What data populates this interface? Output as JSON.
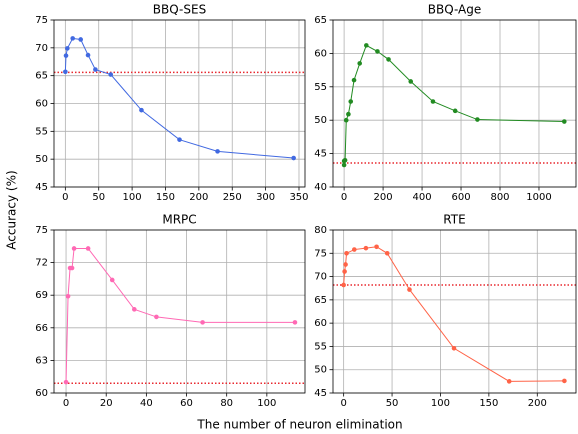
{
  "ylabel": "Accuracy (%)",
  "xlabel": "The number of neuron elimination",
  "chart_data": [
    {
      "type": "line",
      "title": "BBQ-SES",
      "color": "#4169e1",
      "baseline": 65.6,
      "baseline_color": "#e8282f",
      "grid": true,
      "x": [
        0,
        1,
        3,
        11,
        23,
        34,
        45,
        68,
        114,
        171,
        228,
        342
      ],
      "values": [
        65.7,
        68.6,
        69.9,
        71.7,
        71.5,
        68.7,
        66.1,
        65.2,
        58.8,
        53.5,
        51.4,
        50.2
      ],
      "xlim": [
        -17,
        359
      ],
      "xticks": [
        0,
        50,
        100,
        150,
        200,
        250,
        300,
        350
      ],
      "ylim": [
        45,
        75
      ],
      "yticks": [
        45,
        50,
        55,
        60,
        65,
        70,
        75
      ]
    },
    {
      "type": "line",
      "title": "BBQ-Age",
      "color": "#228b22",
      "baseline": 43.6,
      "baseline_color": "#e8282f",
      "grid": true,
      "x": [
        0,
        0,
        5,
        11,
        22,
        34,
        51,
        80,
        114,
        171,
        228,
        342,
        456,
        570,
        684,
        1130
      ],
      "values": [
        43.9,
        43.3,
        44.0,
        50.0,
        50.9,
        52.8,
        56.0,
        58.5,
        61.2,
        60.3,
        59.1,
        55.8,
        52.8,
        51.4,
        50.1,
        49.8
      ],
      "xlim": [
        -57,
        1190
      ],
      "xticks": [
        0,
        200,
        400,
        600,
        800,
        1000
      ],
      "ylim": [
        40,
        65
      ],
      "yticks": [
        40,
        45,
        50,
        55,
        60,
        65
      ]
    },
    {
      "type": "line",
      "title": "MRPC",
      "color": "#ff69b4",
      "baseline": 60.9,
      "baseline_color": "#e8282f",
      "grid": true,
      "x": [
        0,
        1,
        2,
        3,
        4,
        11,
        23,
        34,
        45,
        68,
        114
      ],
      "values": [
        61.0,
        68.9,
        71.5,
        71.5,
        73.3,
        73.3,
        70.4,
        67.7,
        67.0,
        66.5,
        66.5
      ],
      "xlim": [
        -6,
        119
      ],
      "xticks": [
        0,
        20,
        40,
        60,
        80,
        100
      ],
      "ylim": [
        60,
        75
      ],
      "yticks": [
        60,
        63,
        66,
        69,
        72,
        75
      ]
    },
    {
      "type": "line",
      "title": "RTE",
      "color": "#ff6347",
      "baseline": 68.2,
      "baseline_color": "#e8282f",
      "grid": true,
      "x": [
        0,
        1,
        2,
        3,
        11,
        23,
        34,
        45,
        68,
        114,
        171,
        228
      ],
      "values": [
        68.2,
        71.1,
        72.6,
        75.0,
        75.8,
        76.1,
        76.4,
        75.0,
        67.2,
        54.6,
        47.5,
        47.6
      ],
      "xlim": [
        -11,
        240
      ],
      "xticks": [
        0,
        50,
        100,
        150,
        200
      ],
      "ylim": [
        45,
        80
      ],
      "yticks": [
        45,
        50,
        55,
        60,
        65,
        70,
        75,
        80
      ]
    }
  ]
}
